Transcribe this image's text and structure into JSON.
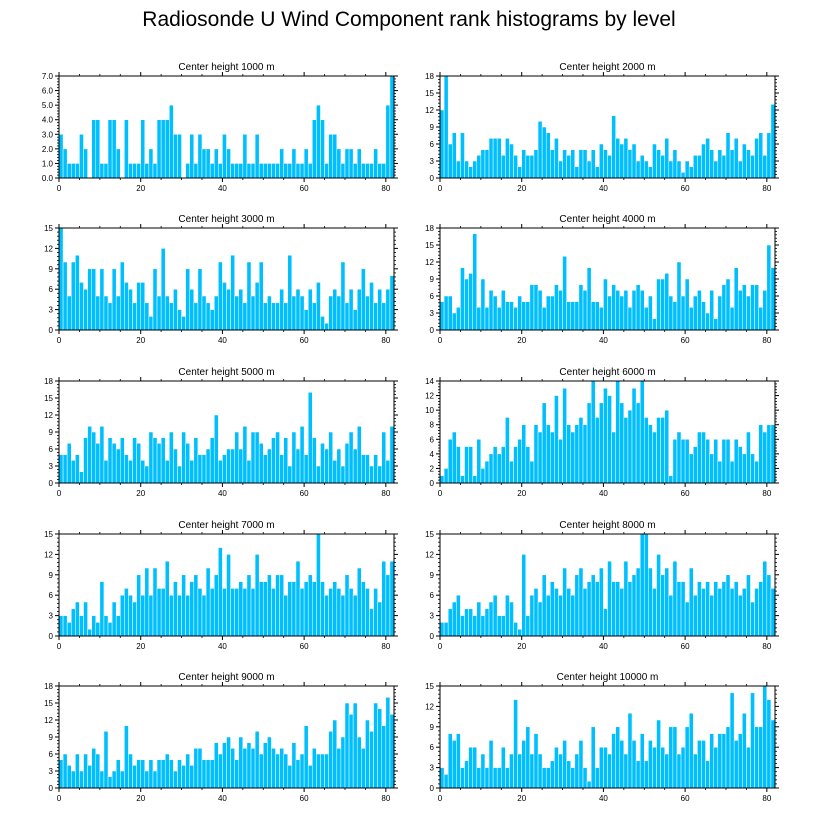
{
  "figure_title": "Radiosonde U Wind Component rank histograms by level",
  "colors": {
    "bar_fill": "#00BFFF",
    "bar_stroke": "#FFFFFF",
    "axis": "#000000"
  },
  "chart_data": [
    {
      "type": "bar",
      "title": "Center height 1000 m",
      "x": {
        "start": 0,
        "step": 1
      },
      "xticks": [
        0,
        20,
        40,
        60,
        80
      ],
      "xlim": [
        0,
        82
      ],
      "ylim": [
        0,
        7
      ],
      "yticks": [
        0,
        1,
        2,
        3,
        4,
        5,
        6,
        7
      ],
      "ytick_labels": [
        "0.0",
        "1.0",
        "2.0",
        "3.0",
        "4.0",
        "5.0",
        "6.0",
        "7.0"
      ],
      "values": [
        3,
        2,
        1,
        1,
        1,
        3,
        2,
        0,
        4,
        4,
        1,
        1,
        4,
        4,
        2,
        0,
        4,
        1,
        1,
        1,
        4,
        1,
        2,
        1,
        4,
        4,
        4,
        5,
        3,
        3,
        0,
        1,
        3,
        1,
        3,
        2,
        2,
        1,
        2,
        1,
        3,
        2,
        1,
        1,
        1,
        3,
        1,
        1,
        3,
        1,
        1,
        1,
        1,
        1,
        2,
        1,
        1,
        2,
        1,
        1,
        2,
        1,
        4,
        5,
        4,
        1,
        3,
        3,
        2,
        1,
        2,
        2,
        1,
        2,
        1,
        1,
        1,
        2,
        1,
        1,
        5,
        7
      ]
    },
    {
      "type": "bar",
      "title": "Center height 2000 m",
      "x": {
        "start": 0,
        "step": 1
      },
      "xticks": [
        0,
        20,
        40,
        60,
        80
      ],
      "xlim": [
        0,
        82
      ],
      "ylim": [
        0,
        18
      ],
      "yticks": [
        0,
        3,
        6,
        9,
        12,
        15,
        18
      ],
      "ytick_labels": [
        "0",
        "3",
        "6",
        "9",
        "12",
        "15",
        "18"
      ],
      "values": [
        12,
        18,
        6,
        8,
        3,
        8,
        3,
        2,
        3,
        4,
        5,
        5,
        7,
        7,
        7,
        4,
        7,
        6,
        4,
        2,
        5,
        4,
        4,
        5,
        10,
        9,
        8,
        5,
        7,
        3,
        5,
        4,
        5,
        2,
        5,
        5,
        3,
        5,
        2,
        6,
        5,
        4,
        11,
        7,
        6,
        7,
        5,
        6,
        3,
        4,
        3,
        2,
        6,
        5,
        4,
        7,
        3,
        5,
        3,
        1,
        3,
        2,
        4,
        4,
        6,
        7,
        5,
        3,
        5,
        4,
        8,
        5,
        7,
        3,
        6,
        5,
        4,
        7,
        8,
        4,
        8,
        13
      ]
    },
    {
      "type": "bar",
      "title": "Center height 3000 m",
      "x": {
        "start": 0,
        "step": 1
      },
      "xticks": [
        0,
        20,
        40,
        60,
        80
      ],
      "xlim": [
        0,
        82
      ],
      "ylim": [
        0,
        15
      ],
      "yticks": [
        0,
        3,
        6,
        9,
        12,
        15
      ],
      "ytick_labels": [
        "0",
        "3",
        "6",
        "9",
        "12",
        "15"
      ],
      "values": [
        15,
        10,
        5,
        10,
        11,
        7,
        6,
        9,
        9,
        5,
        9,
        5,
        4,
        9,
        5,
        10,
        7,
        6,
        4,
        7,
        7,
        4,
        2,
        9,
        5,
        12,
        5,
        4,
        6,
        3,
        2,
        9,
        6,
        4,
        9,
        5,
        4,
        3,
        5,
        10,
        7,
        6,
        11,
        5,
        6,
        4,
        10,
        5,
        7,
        10,
        4,
        5,
        4,
        4,
        6,
        4,
        11,
        5,
        6,
        5,
        3,
        6,
        4,
        7,
        2,
        1,
        5,
        6,
        5,
        10,
        4,
        6,
        3,
        6,
        9,
        5,
        7,
        4,
        6,
        4,
        6,
        8
      ]
    },
    {
      "type": "bar",
      "title": "Center height 4000 m",
      "x": {
        "start": 0,
        "step": 1
      },
      "xticks": [
        0,
        20,
        40,
        60,
        80
      ],
      "xlim": [
        0,
        82
      ],
      "ylim": [
        0,
        18
      ],
      "yticks": [
        0,
        3,
        6,
        9,
        12,
        15,
        18
      ],
      "ytick_labels": [
        "0",
        "3",
        "6",
        "9",
        "12",
        "15",
        "18"
      ],
      "values": [
        5,
        6,
        6,
        3,
        4,
        11,
        9,
        10,
        17,
        4,
        9,
        4,
        7,
        6,
        4,
        7,
        5,
        5,
        4,
        6,
        5,
        5,
        8,
        8,
        7,
        4,
        6,
        6,
        8,
        7,
        13,
        5,
        5,
        5,
        8,
        7,
        11,
        5,
        5,
        4,
        9,
        6,
        8,
        7,
        6,
        7,
        4,
        7,
        8,
        7,
        4,
        6,
        2,
        9,
        9,
        10,
        6,
        5,
        12,
        6,
        9,
        4,
        6,
        7,
        5,
        3,
        7,
        2,
        6,
        8,
        9,
        4,
        11,
        7,
        8,
        6,
        8,
        8,
        4,
        7,
        15,
        11
      ]
    },
    {
      "type": "bar",
      "title": "Center height 5000 m",
      "x": {
        "start": 0,
        "step": 1
      },
      "xticks": [
        0,
        20,
        40,
        60,
        80
      ],
      "xlim": [
        0,
        82
      ],
      "ylim": [
        0,
        18
      ],
      "yticks": [
        0,
        3,
        6,
        9,
        12,
        15,
        18
      ],
      "ytick_labels": [
        "0",
        "3",
        "6",
        "9",
        "12",
        "15",
        "18"
      ],
      "values": [
        5,
        5,
        7,
        4,
        5,
        2,
        8,
        10,
        9,
        7,
        10,
        4,
        8,
        7,
        6,
        8,
        5,
        4,
        8,
        7,
        4,
        3,
        9,
        8,
        7,
        8,
        4,
        9,
        6,
        3,
        9,
        7,
        4,
        8,
        5,
        5,
        6,
        8,
        12,
        4,
        5,
        6,
        6,
        9,
        6,
        10,
        4,
        9,
        9,
        7,
        5,
        6,
        8,
        9,
        5,
        8,
        3,
        9,
        6,
        10,
        5,
        16,
        8,
        3,
        7,
        6,
        9,
        4,
        6,
        3,
        7,
        9,
        6,
        10,
        5,
        5,
        3,
        5,
        3,
        9,
        4,
        10
      ]
    },
    {
      "type": "bar",
      "title": "Center height 6000 m",
      "x": {
        "start": 0,
        "step": 1
      },
      "xticks": [
        0,
        20,
        40,
        60,
        80
      ],
      "xlim": [
        0,
        82
      ],
      "ylim": [
        0,
        14
      ],
      "yticks": [
        0,
        2,
        4,
        6,
        8,
        10,
        12,
        14
      ],
      "ytick_labels": [
        "0",
        "2",
        "4",
        "6",
        "8",
        "10",
        "12",
        "14"
      ],
      "values": [
        1,
        2,
        6,
        7,
        5,
        1,
        5,
        5,
        1,
        6,
        2,
        3,
        4,
        5,
        4,
        5,
        9,
        3,
        5,
        6,
        8,
        5,
        3,
        8,
        7,
        11,
        8,
        7,
        12,
        6,
        13,
        8,
        7,
        8,
        9,
        8,
        11,
        14,
        9,
        11,
        13,
        12,
        7,
        14,
        11,
        9,
        10,
        13,
        11,
        14,
        9,
        8,
        7,
        9,
        9,
        10,
        1,
        6,
        7,
        6,
        6,
        4,
        5,
        7,
        7,
        6,
        4,
        6,
        3,
        6,
        6,
        3,
        6,
        5,
        4,
        7,
        4,
        3,
        8,
        7,
        8,
        8
      ]
    },
    {
      "type": "bar",
      "title": "Center height 7000 m",
      "x": {
        "start": 0,
        "step": 1
      },
      "xticks": [
        0,
        20,
        40,
        60,
        80
      ],
      "xlim": [
        0,
        82
      ],
      "ylim": [
        0,
        15
      ],
      "yticks": [
        0,
        3,
        6,
        9,
        12,
        15
      ],
      "ytick_labels": [
        "0",
        "3",
        "6",
        "9",
        "12",
        "15"
      ],
      "values": [
        3,
        3,
        2,
        4,
        5,
        3,
        5,
        1,
        3,
        2,
        8,
        3,
        2,
        5,
        3,
        6,
        7,
        6,
        5,
        9,
        6,
        10,
        6,
        10,
        7,
        7,
        11,
        6,
        8,
        6,
        9,
        6,
        8,
        9,
        7,
        6,
        10,
        7,
        9,
        13,
        7,
        12,
        7,
        7,
        8,
        7,
        9,
        7,
        12,
        8,
        8,
        9,
        7,
        9,
        9,
        6,
        8,
        8,
        11,
        7,
        8,
        9,
        8,
        15,
        8,
        6,
        7,
        8,
        7,
        6,
        9,
        7,
        6,
        10,
        8,
        7,
        4,
        7,
        5,
        11,
        9,
        11
      ]
    },
    {
      "type": "bar",
      "title": "Center height 8000 m",
      "x": {
        "start": 0,
        "step": 1
      },
      "xticks": [
        0,
        20,
        40,
        60,
        80
      ],
      "xlim": [
        0,
        82
      ],
      "ylim": [
        0,
        15
      ],
      "yticks": [
        0,
        3,
        6,
        9,
        12,
        15
      ],
      "ytick_labels": [
        "0",
        "3",
        "6",
        "9",
        "12",
        "15"
      ],
      "values": [
        2,
        2,
        4,
        5,
        6,
        3,
        4,
        4,
        3,
        5,
        3,
        4,
        5,
        6,
        3,
        3,
        6,
        5,
        2,
        1,
        12,
        3,
        6,
        7,
        5,
        9,
        6,
        8,
        7,
        6,
        10,
        7,
        6,
        9,
        10,
        7,
        8,
        9,
        8,
        10,
        4,
        11,
        8,
        8,
        7,
        11,
        8,
        9,
        10,
        15,
        15,
        10,
        7,
        12,
        9,
        10,
        6,
        11,
        8,
        8,
        5,
        10,
        6,
        8,
        7,
        8,
        6,
        8,
        7,
        8,
        9,
        7,
        8,
        6,
        7,
        9,
        5,
        7,
        8,
        11,
        9,
        7
      ]
    },
    {
      "type": "bar",
      "title": "Center height 9000 m",
      "x": {
        "start": 0,
        "step": 1
      },
      "xticks": [
        0,
        20,
        40,
        60,
        80
      ],
      "xlim": [
        0,
        82
      ],
      "ylim": [
        0,
        18
      ],
      "yticks": [
        0,
        3,
        6,
        9,
        12,
        15,
        18
      ],
      "ytick_labels": [
        "0",
        "3",
        "6",
        "9",
        "12",
        "15",
        "18"
      ],
      "values": [
        5,
        6,
        4,
        3,
        6,
        3,
        6,
        4,
        7,
        6,
        3,
        10,
        2,
        3,
        5,
        3,
        11,
        6,
        4,
        5,
        5,
        3,
        5,
        3,
        5,
        5,
        6,
        5,
        3,
        5,
        4,
        6,
        4,
        7,
        7,
        5,
        5,
        5,
        8,
        6,
        8,
        9,
        7,
        5,
        9,
        7,
        8,
        7,
        10,
        6,
        8,
        9,
        7,
        6,
        7,
        6,
        4,
        8,
        5,
        6,
        11,
        4,
        7,
        6,
        6,
        6,
        10,
        12,
        7,
        9,
        15,
        13,
        15,
        9,
        7,
        12,
        10,
        15,
        14,
        11,
        16,
        13
      ]
    },
    {
      "type": "bar",
      "title": "Center height 10000 m",
      "x": {
        "start": 0,
        "step": 1
      },
      "xticks": [
        0,
        20,
        40,
        60,
        80
      ],
      "xlim": [
        0,
        82
      ],
      "ylim": [
        0,
        15
      ],
      "yticks": [
        0,
        3,
        6,
        9,
        12,
        15
      ],
      "ytick_labels": [
        "0",
        "3",
        "6",
        "9",
        "12",
        "15"
      ],
      "values": [
        3,
        2,
        8,
        7,
        8,
        3,
        4,
        6,
        6,
        3,
        5,
        3,
        7,
        3,
        3,
        6,
        3,
        5,
        13,
        5,
        7,
        9,
        5,
        8,
        5,
        3,
        3,
        4,
        6,
        5,
        7,
        4,
        3,
        5,
        7,
        3,
        1,
        9,
        3,
        6,
        6,
        5,
        8,
        9,
        7,
        5,
        11,
        7,
        4,
        8,
        4,
        7,
        6,
        10,
        6,
        5,
        9,
        9,
        5,
        6,
        9,
        11,
        5,
        7,
        7,
        4,
        8,
        6,
        8,
        8,
        9,
        14,
        7,
        8,
        11,
        6,
        14,
        9,
        9,
        15,
        13,
        10
      ]
    }
  ]
}
